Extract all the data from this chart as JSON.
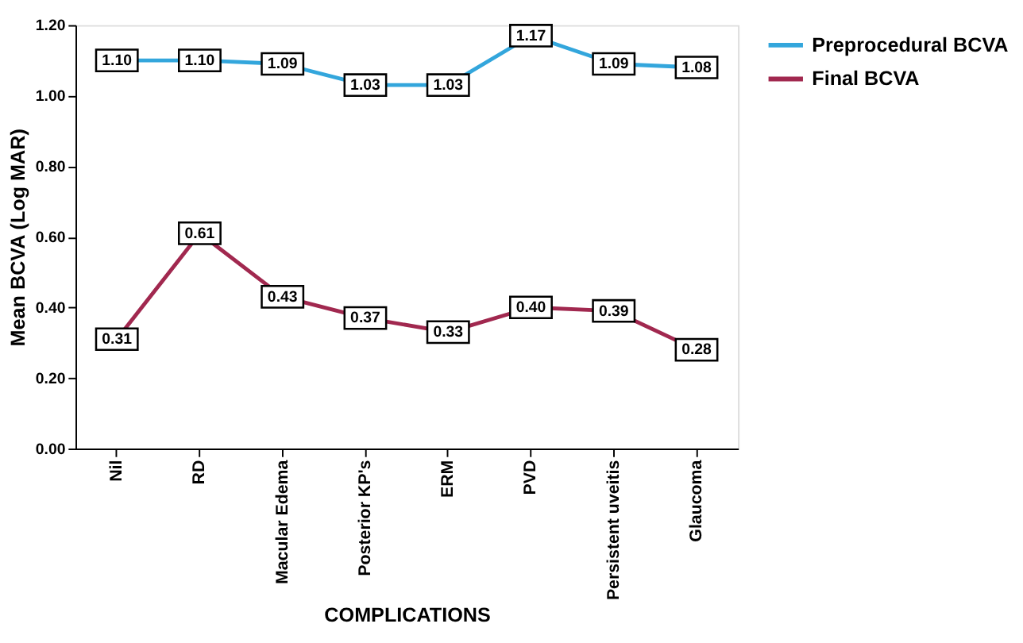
{
  "chart_data": {
    "type": "line",
    "xlabel": "COMPLICATIONS",
    "ylabel": "Mean BCVA (Log MAR)",
    "categories": [
      "Nil",
      "RD",
      "Macular Edema",
      "Posterior KP's",
      "ERM",
      "PVD",
      "Persistent uveitis",
      "Glaucoma"
    ],
    "series": [
      {
        "name": "Preprocedural  BCVA",
        "color": "#33a6dc",
        "values": [
          1.1,
          1.1,
          1.09,
          1.03,
          1.03,
          1.17,
          1.09,
          1.08
        ],
        "value_labels": [
          "1.10",
          "1.10",
          "1.09",
          "1.03",
          "1.03",
          "1.17",
          "1.09",
          "1.08"
        ]
      },
      {
        "name": "Final BCVA",
        "color": "#a1284f",
        "values": [
          0.31,
          0.61,
          0.43,
          0.37,
          0.33,
          0.4,
          0.39,
          0.28
        ],
        "value_labels": [
          "0.31",
          "0.61",
          "0.43",
          "0.37",
          "0.33",
          "0.40",
          "0.39",
          "0.28"
        ]
      }
    ],
    "ylim": [
      0,
      1.2
    ],
    "yticks": [
      {
        "value": 0,
        "label": "0.00"
      },
      {
        "value": 0.2,
        "label": "0.20"
      },
      {
        "value": 0.4,
        "label": "0.40"
      },
      {
        "value": 0.6,
        "label": "0.60"
      },
      {
        "value": 0.8,
        "label": "0.80"
      },
      {
        "value": 1.0,
        "label": "1.00"
      },
      {
        "value": 1.2,
        "label": "1.20"
      }
    ],
    "grid": false,
    "legend": "top right",
    "marker": "square",
    "line_style": "solid"
  }
}
